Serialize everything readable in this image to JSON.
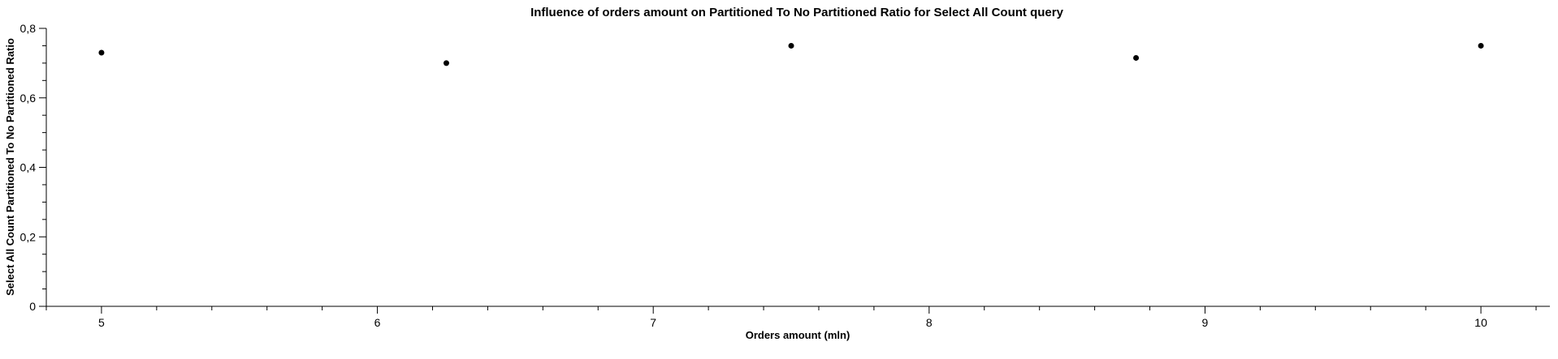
{
  "chart_data": {
    "type": "scatter",
    "title": "Influence of orders amount on Partitioned To No Partitioned Ratio for Select All Count query",
    "xlabel": "Orders amount (mln)",
    "ylabel": "Select All Count Partitioned To No Partitioned Ratio",
    "xlim": [
      4.8,
      10.25
    ],
    "ylim": [
      0,
      0.8
    ],
    "x_ticks": [
      "5",
      "6",
      "7",
      "8",
      "9",
      "10"
    ],
    "y_ticks": [
      "0",
      "0,2",
      "0,4",
      "0,6",
      "0,8"
    ],
    "grid": false,
    "series": [
      {
        "x": [
          5,
          6.25,
          7.5,
          8.75,
          10
        ],
        "y": [
          0.73,
          0.7,
          0.75,
          0.715,
          0.75
        ]
      }
    ]
  }
}
